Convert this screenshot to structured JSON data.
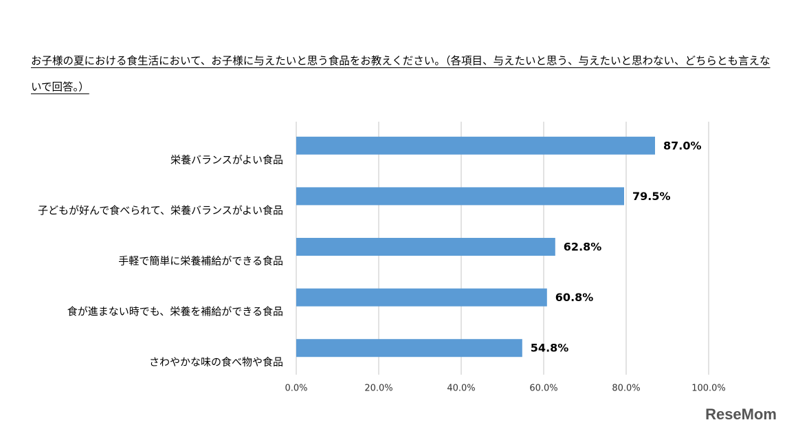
{
  "chart_data": {
    "type": "hbar",
    "title_lines": [
      "お子様の夏における食生活において、お子様に与えたいと思う食品をお教えください。（各項目、与えたいと思う、与えたいと思わない、どちらとも言えな",
      "いで回答。）"
    ],
    "categories": [
      "栄養バランスがよい食品",
      "子どもが好んで食べられて、栄養バランスがよい食品",
      "手軽で簡単に栄養補給ができる食品",
      "食が進まない時でも、栄養を補給ができる食品",
      "さわやかな味の食べ物や食品"
    ],
    "values": [
      87.0,
      79.5,
      62.8,
      60.8,
      54.8
    ],
    "value_labels": [
      "87.0%",
      "79.5%",
      "62.8%",
      "60.8%",
      "54.8%"
    ],
    "color": "#5b9bd5",
    "xlim": [
      0,
      100
    ],
    "xticks": [
      {
        "value": 0,
        "label": "0.0%"
      },
      {
        "value": 20,
        "label": "20.0%"
      },
      {
        "value": 40,
        "label": "40.0%"
      },
      {
        "value": 60,
        "label": "60.0%"
      },
      {
        "value": 80,
        "label": "80.0%"
      },
      {
        "value": 100,
        "label": "100.0%"
      }
    ],
    "grid": true,
    "watermark": "ReseMom"
  }
}
